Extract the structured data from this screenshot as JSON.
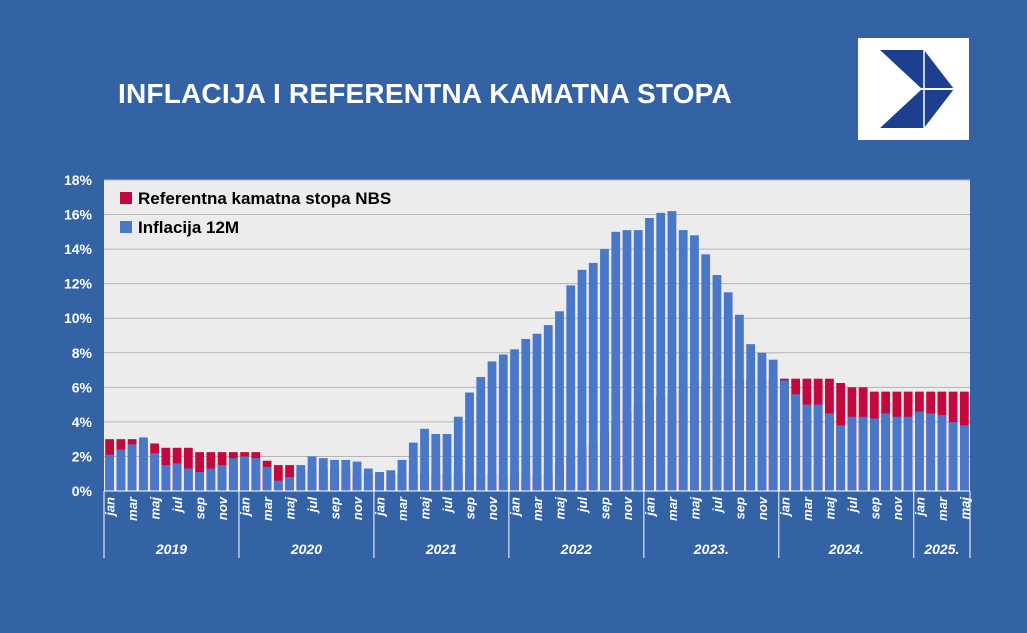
{
  "title": "INFLACIJA I REFERENTNA KAMATNA STOPA",
  "colors": {
    "background": "#3463a5",
    "plot_area": "#ececec",
    "rate_series": "#c3073f",
    "inflation_series": "#4a78c8",
    "logo_red": "#e31e24",
    "logo_blue": "#1d3f8f"
  },
  "logo": {
    "icon": "nbs-logo-icon"
  },
  "chart_data": {
    "type": "bar",
    "y_axis": {
      "range": [
        0,
        18
      ],
      "ticks": [
        "0%",
        "2%",
        "4%",
        "6%",
        "8%",
        "10%",
        "12%",
        "14%",
        "16%",
        "18%"
      ],
      "grid": true
    },
    "legend": {
      "placement": "top-left",
      "entries": [
        "Referentna kamatna stopa NBS",
        "Inflacija 12M"
      ]
    },
    "month_labels": [
      "jan",
      "mar",
      "maj",
      "jul",
      "sep",
      "nov"
    ],
    "years": [
      {
        "label": "2019",
        "months": 12
      },
      {
        "label": "2020",
        "months": 12
      },
      {
        "label": "2021",
        "months": 12
      },
      {
        "label": "2022",
        "months": 12
      },
      {
        "label": "2023.",
        "months": 12
      },
      {
        "label": "2024.",
        "months": 12
      },
      {
        "label": "2025.",
        "months": 5
      }
    ],
    "series": [
      {
        "name": "Referentna kamatna stopa NBS",
        "values": [
          3.0,
          3.0,
          3.0,
          3.0,
          2.75,
          2.5,
          2.5,
          2.5,
          2.25,
          2.25,
          2.25,
          2.25,
          2.25,
          2.25,
          1.75,
          1.5,
          1.5,
          1.25,
          1.25,
          1.25,
          1.25,
          1.25,
          1.0,
          1.0,
          1.0,
          1.0,
          1.0,
          1.0,
          1.0,
          1.0,
          1.0,
          1.0,
          1.0,
          1.0,
          1.0,
          1.0,
          1.0,
          1.0,
          1.0,
          1.0,
          1.5,
          2.0,
          2.5,
          2.75,
          3.5,
          4.0,
          4.5,
          5.0,
          5.25,
          5.5,
          5.75,
          6.0,
          6.25,
          6.25,
          6.5,
          6.5,
          6.5,
          6.5,
          6.5,
          6.5,
          6.5,
          6.5,
          6.5,
          6.5,
          6.5,
          6.25,
          6.0,
          6.0,
          5.75,
          5.75,
          5.75,
          5.75,
          5.75,
          5.75,
          5.75,
          5.75,
          5.75
        ]
      },
      {
        "name": "Inflacija 12M",
        "values": [
          2.1,
          2.4,
          2.7,
          3.1,
          2.2,
          1.5,
          1.6,
          1.3,
          1.1,
          1.3,
          1.5,
          1.9,
          2.0,
          1.9,
          1.4,
          0.6,
          0.8,
          1.5,
          2.0,
          1.9,
          1.8,
          1.8,
          1.7,
          1.3,
          1.1,
          1.2,
          1.8,
          2.8,
          3.6,
          3.3,
          3.3,
          4.3,
          5.7,
          6.6,
          7.5,
          7.9,
          8.2,
          8.8,
          9.1,
          9.6,
          10.4,
          11.9,
          12.8,
          13.2,
          14.0,
          15.0,
          15.1,
          15.1,
          15.8,
          16.1,
          16.2,
          15.1,
          14.8,
          13.7,
          12.5,
          11.5,
          10.2,
          8.5,
          8.0,
          7.6,
          6.4,
          5.6,
          5.0,
          5.0,
          4.5,
          3.8,
          4.3,
          4.3,
          4.2,
          4.5,
          4.3,
          4.3,
          4.6,
          4.5,
          4.4,
          4.0,
          3.8
        ]
      }
    ]
  }
}
